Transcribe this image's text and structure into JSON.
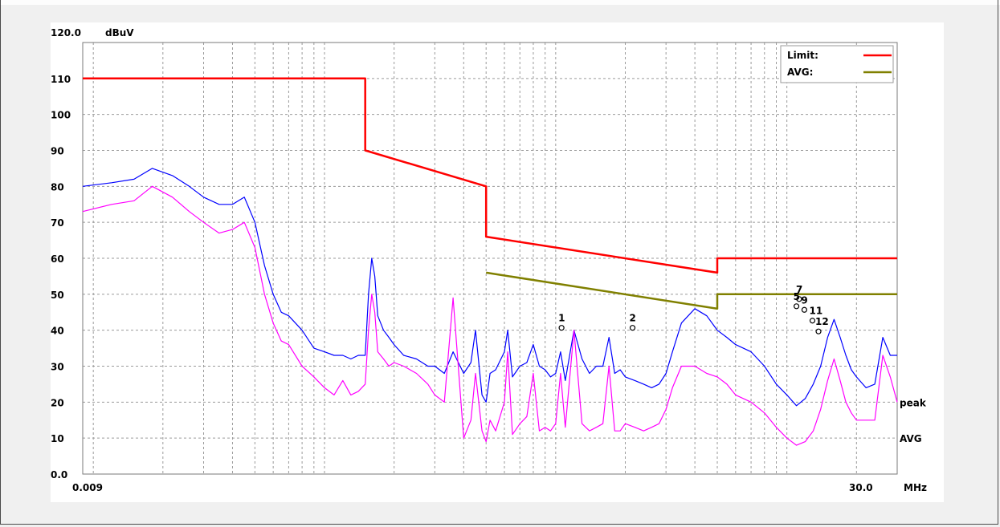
{
  "chart_data": {
    "type": "line",
    "x_scale": "log",
    "xlim": [
      0.009,
      30.0
    ],
    "ylim": [
      0,
      120
    ],
    "grid": true,
    "y_unit": "dBuV",
    "x_unit": "MHz",
    "y_tick_labels": [
      {
        "value": 120,
        "label": "120.0"
      },
      {
        "value": 110,
        "label": "110"
      },
      {
        "value": 100,
        "label": "100"
      },
      {
        "value": 90,
        "label": "90"
      },
      {
        "value": 80,
        "label": "80"
      },
      {
        "value": 70,
        "label": "70"
      },
      {
        "value": 60,
        "label": "60"
      },
      {
        "value": 50,
        "label": "50"
      },
      {
        "value": 40,
        "label": "40"
      },
      {
        "value": 30,
        "label": "30"
      },
      {
        "value": 20,
        "label": "20"
      },
      {
        "value": 10,
        "label": "10"
      },
      {
        "value": 0,
        "label": "0.0"
      }
    ],
    "x_tick_labels": [
      {
        "value": 0.009,
        "label": "0.009"
      },
      {
        "value": 30.0,
        "label": "30.0"
      }
    ],
    "legend": {
      "placement": "top-right",
      "entries": [
        {
          "label": "Limit:",
          "color": "#ff0000"
        },
        {
          "label": "AVG:",
          "color": "#808000"
        }
      ]
    },
    "series": [
      {
        "name": "Limit",
        "color": "#ff0000",
        "x": [
          0.009,
          0.15,
          0.15,
          0.5,
          0.5,
          5.0,
          5.0,
          30.0
        ],
        "y": [
          110,
          110,
          90,
          80,
          66,
          56,
          60,
          60
        ]
      },
      {
        "name": "AVG",
        "color": "#808000",
        "x": [
          0.5,
          5.0,
          5.0,
          30.0
        ],
        "y": [
          56,
          46,
          50,
          50
        ]
      },
      {
        "name": "peak",
        "color": "#0000ff",
        "x": [
          0.009,
          0.012,
          0.015,
          0.018,
          0.022,
          0.026,
          0.03,
          0.035,
          0.04,
          0.045,
          0.05,
          0.055,
          0.06,
          0.065,
          0.07,
          0.08,
          0.09,
          0.1,
          0.11,
          0.12,
          0.13,
          0.14,
          0.15,
          0.155,
          0.16,
          0.165,
          0.17,
          0.18,
          0.19,
          0.2,
          0.22,
          0.25,
          0.28,
          0.3,
          0.33,
          0.36,
          0.4,
          0.43,
          0.45,
          0.48,
          0.5,
          0.52,
          0.55,
          0.6,
          0.62,
          0.65,
          0.7,
          0.75,
          0.8,
          0.85,
          0.9,
          0.95,
          1.0,
          1.05,
          1.1,
          1.2,
          1.3,
          1.4,
          1.5,
          1.6,
          1.7,
          1.8,
          1.9,
          2.0,
          2.2,
          2.4,
          2.6,
          2.8,
          3.0,
          3.2,
          3.5,
          4.0,
          4.5,
          5.0,
          5.5,
          6.0,
          7.0,
          8.0,
          9.0,
          10.0,
          11.0,
          12.0,
          13.0,
          14.0,
          15.0,
          16.0,
          17.0,
          18.0,
          19.0,
          20.0,
          22.0,
          24.0,
          26.0,
          28.0,
          30.0
        ],
        "y": [
          80,
          81,
          82,
          85,
          83,
          80,
          77,
          75,
          75,
          77,
          70,
          58,
          50,
          45,
          44,
          40,
          35,
          34,
          33,
          33,
          32,
          33,
          33,
          50,
          60,
          55,
          44,
          40,
          38,
          36,
          33,
          32,
          30,
          30,
          28,
          34,
          28,
          31,
          40,
          22,
          20,
          28,
          29,
          34,
          40,
          27,
          30,
          31,
          36,
          30,
          29,
          27,
          28,
          34,
          26,
          40,
          32,
          28,
          30,
          30,
          38,
          28,
          29,
          27,
          26,
          25,
          24,
          25,
          28,
          34,
          42,
          46,
          44,
          40,
          38,
          36,
          34,
          30,
          25,
          22,
          19,
          21,
          25,
          30,
          38,
          43,
          38,
          33,
          29,
          27,
          24,
          25,
          38,
          33,
          33
        ]
      },
      {
        "name": "AVG",
        "color": "#ff00ff",
        "x": [
          0.009,
          0.012,
          0.015,
          0.018,
          0.022,
          0.026,
          0.03,
          0.035,
          0.04,
          0.045,
          0.05,
          0.055,
          0.06,
          0.065,
          0.07,
          0.08,
          0.09,
          0.1,
          0.11,
          0.12,
          0.13,
          0.14,
          0.15,
          0.155,
          0.16,
          0.165,
          0.17,
          0.18,
          0.19,
          0.2,
          0.22,
          0.25,
          0.28,
          0.3,
          0.33,
          0.36,
          0.4,
          0.43,
          0.45,
          0.48,
          0.5,
          0.52,
          0.55,
          0.6,
          0.62,
          0.65,
          0.7,
          0.75,
          0.8,
          0.85,
          0.9,
          0.95,
          1.0,
          1.05,
          1.1,
          1.2,
          1.3,
          1.4,
          1.5,
          1.6,
          1.7,
          1.8,
          1.9,
          2.0,
          2.2,
          2.4,
          2.6,
          2.8,
          3.0,
          3.2,
          3.5,
          4.0,
          4.5,
          5.0,
          5.5,
          6.0,
          7.0,
          8.0,
          9.0,
          10.0,
          11.0,
          12.0,
          13.0,
          14.0,
          15.0,
          16.0,
          17.0,
          18.0,
          19.0,
          20.0,
          22.0,
          24.0,
          26.0,
          28.0,
          30.0
        ],
        "y": [
          73,
          75,
          76,
          80,
          77,
          73,
          70,
          67,
          68,
          70,
          63,
          50,
          42,
          37,
          36,
          30,
          27,
          24,
          22,
          26,
          22,
          23,
          25,
          40,
          50,
          45,
          34,
          32,
          30,
          31,
          30,
          28,
          25,
          22,
          20,
          49,
          10,
          15,
          28,
          12,
          9,
          15,
          12,
          20,
          34,
          11,
          14,
          16,
          28,
          12,
          13,
          12,
          14,
          28,
          13,
          40,
          14,
          12,
          13,
          14,
          30,
          12,
          12,
          14,
          13,
          12,
          13,
          14,
          18,
          24,
          30,
          30,
          28,
          27,
          25,
          22,
          20,
          17,
          13,
          10,
          8,
          9,
          12,
          18,
          26,
          32,
          26,
          20,
          17,
          15,
          15,
          15,
          33,
          27,
          20
        ]
      }
    ],
    "annotations": [
      {
        "text": "1",
        "x": 1.06,
        "y": 42
      },
      {
        "text": "2",
        "x": 2.15,
        "y": 42
      },
      {
        "text": "5",
        "x": 11.0,
        "y": 48
      },
      {
        "text": "7",
        "x": 11.3,
        "y": 50
      },
      {
        "text": "9",
        "x": 11.9,
        "y": 47
      },
      {
        "text": "11",
        "x": 12.9,
        "y": 44
      },
      {
        "text": "12",
        "x": 13.7,
        "y": 41
      }
    ],
    "side_labels": [
      {
        "text": "peak",
        "color": "#000000",
        "y": 20
      },
      {
        "text": "AVG",
        "color": "#ff00ff",
        "y": 10
      }
    ]
  }
}
